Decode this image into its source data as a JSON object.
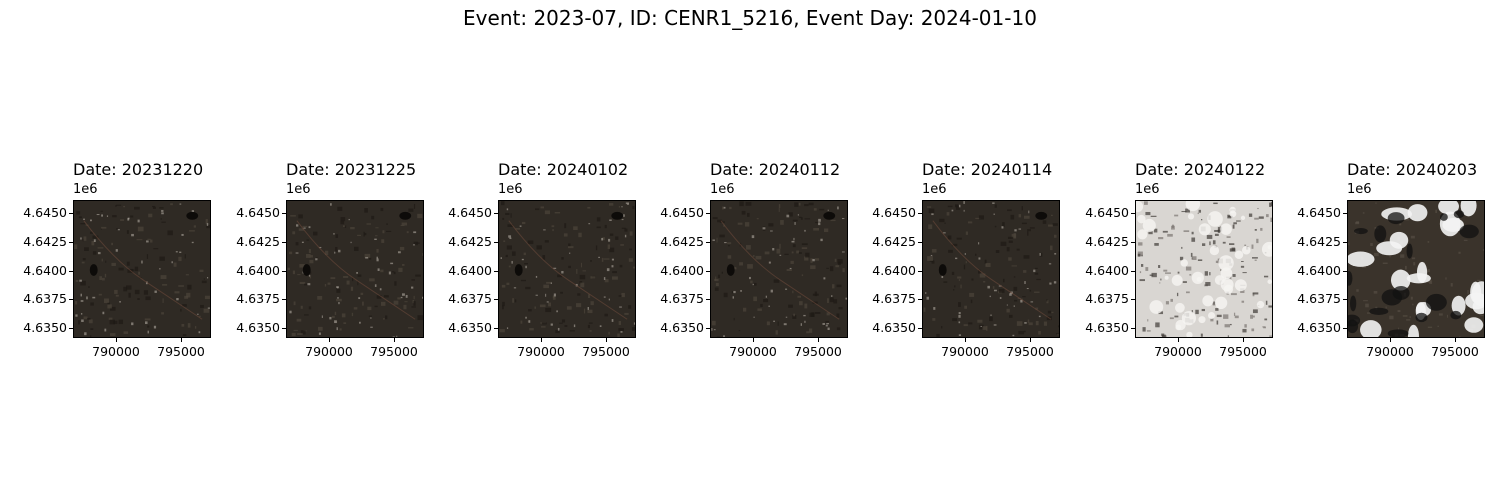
{
  "figure": {
    "title": "Event: 2023-07, ID: CENR1_5216, Event Day: 2024-01-10",
    "axis_offset": "1e6",
    "y_ticks": [
      "4.6450",
      "4.6425",
      "4.6400",
      "4.6375",
      "4.6350"
    ],
    "x_ticks": [
      "790000",
      "795000"
    ]
  },
  "panels": [
    {
      "title": "Date: 20231220",
      "scene": "dark"
    },
    {
      "title": "Date: 20231225",
      "scene": "dark"
    },
    {
      "title": "Date: 20240102",
      "scene": "dark"
    },
    {
      "title": "Date: 20240112",
      "scene": "dark"
    },
    {
      "title": "Date: 20240114",
      "scene": "dark"
    },
    {
      "title": "Date: 20240122",
      "scene": "snow"
    },
    {
      "title": "Date: 20240203",
      "scene": "cloudy"
    }
  ],
  "colors": {
    "dark_base": "#2f2a24",
    "snow_base": "#d9d6d2",
    "cloud": "#f4f4f4"
  }
}
